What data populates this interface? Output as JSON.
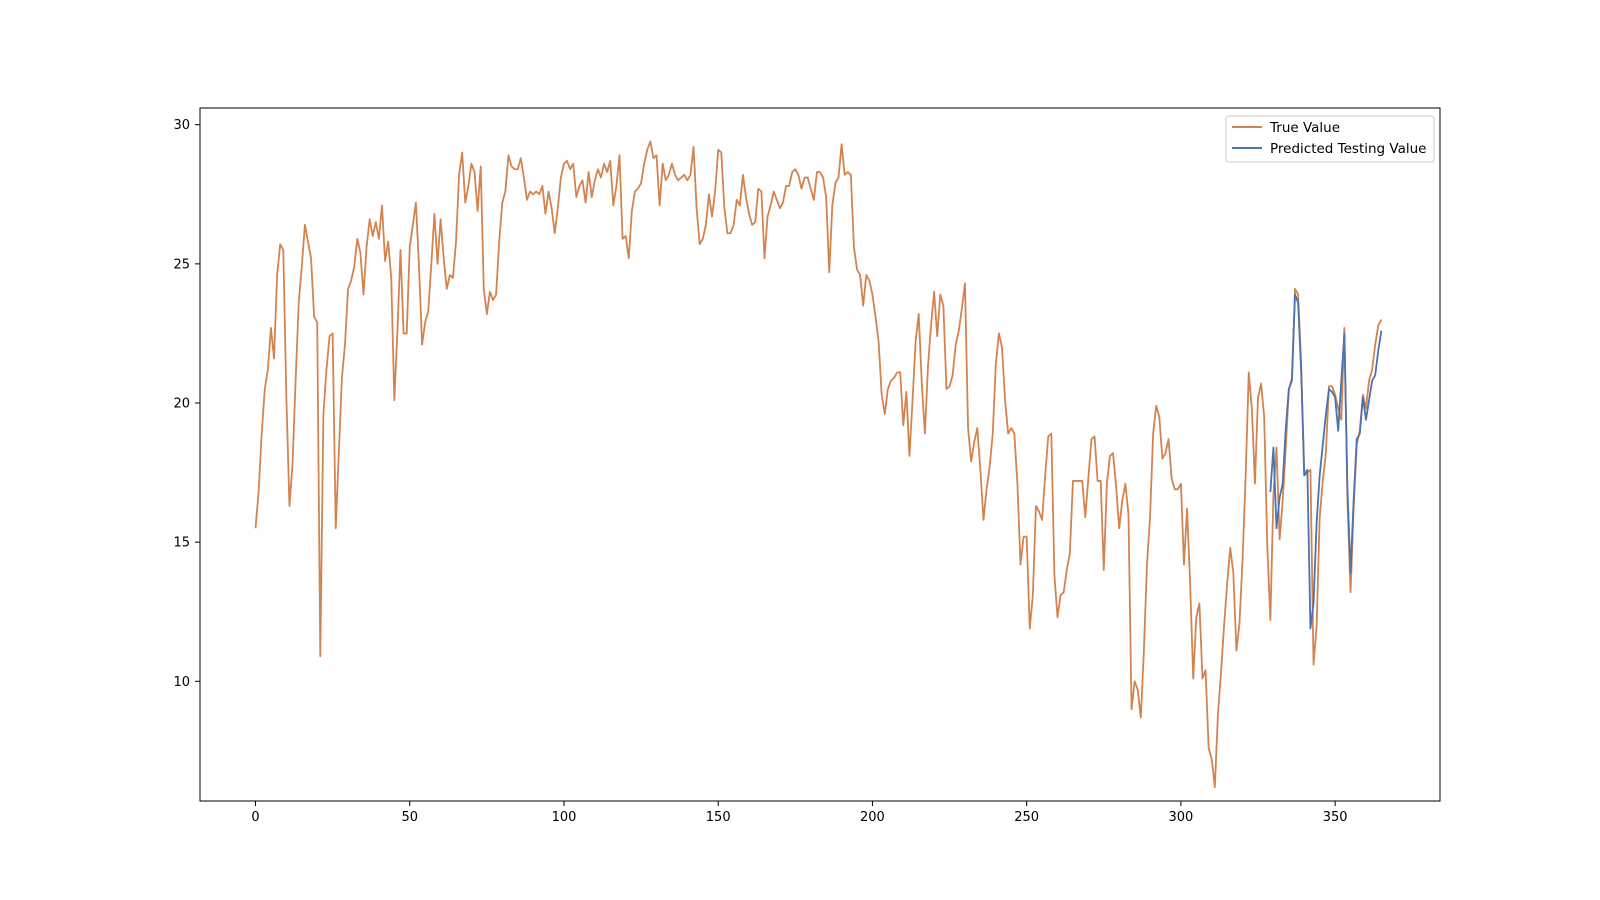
{
  "chart_data": {
    "type": "line",
    "title": "",
    "xlabel": "",
    "ylabel": "",
    "xlim": [
      -18,
      384
    ],
    "ylim": [
      5.7,
      30.6
    ],
    "xticks": [
      0,
      50,
      100,
      150,
      200,
      250,
      300,
      350
    ],
    "yticks": [
      10,
      15,
      20,
      25,
      30
    ],
    "grid": false,
    "legend_position": "top-right",
    "series": [
      {
        "name": "True Value",
        "color": "#d4834f",
        "x_start": 0,
        "values": [
          15.5,
          16.8,
          18.9,
          20.5,
          21.2,
          22.7,
          21.6,
          24.6,
          25.7,
          25.5,
          20.2,
          16.3,
          17.8,
          20.8,
          23.6,
          24.9,
          26.4,
          25.8,
          25.2,
          23.1,
          22.9,
          10.9,
          19.6,
          21.2,
          22.4,
          22.5,
          15.5,
          18.2,
          20.9,
          22.1,
          24.1,
          24.4,
          24.9,
          25.9,
          25.4,
          23.9,
          25.6,
          26.6,
          26.0,
          26.5,
          25.9,
          27.1,
          25.1,
          25.8,
          24.5,
          20.1,
          22.6,
          25.5,
          22.5,
          22.5,
          25.6,
          26.4,
          27.2,
          24.9,
          22.1,
          22.9,
          23.3,
          25.0,
          26.8,
          25.0,
          26.6,
          25.2,
          24.1,
          24.6,
          24.5,
          25.8,
          28.2,
          29.0,
          27.2,
          27.8,
          28.6,
          28.3,
          26.9,
          28.5,
          24.1,
          23.2,
          24.0,
          23.7,
          23.9,
          25.8,
          27.2,
          27.6,
          28.9,
          28.5,
          28.4,
          28.4,
          28.8,
          28.1,
          27.3,
          27.6,
          27.5,
          27.6,
          27.5,
          27.8,
          26.8,
          27.6,
          27.0,
          26.1,
          27.0,
          28.1,
          28.6,
          28.7,
          28.4,
          28.6,
          27.4,
          27.8,
          28.0,
          27.2,
          28.3,
          27.4,
          28.0,
          28.4,
          28.1,
          28.6,
          28.3,
          28.7,
          27.1,
          27.8,
          28.9,
          25.9,
          26.0,
          25.2,
          26.9,
          27.6,
          27.7,
          27.9,
          28.6,
          29.1,
          29.4,
          28.8,
          28.9,
          27.1,
          28.6,
          28.0,
          28.2,
          28.6,
          28.2,
          28.0,
          28.1,
          28.2,
          28.0,
          28.2,
          29.2,
          27.0,
          25.7,
          25.9,
          26.4,
          27.5,
          26.7,
          27.6,
          29.1,
          29.0,
          27.0,
          26.1,
          26.1,
          26.4,
          27.3,
          27.1,
          28.2,
          27.4,
          26.8,
          26.4,
          26.5,
          27.7,
          27.6,
          25.2,
          26.7,
          27.1,
          27.6,
          27.3,
          27.0,
          27.2,
          27.8,
          27.8,
          28.3,
          28.4,
          28.2,
          27.7,
          28.1,
          28.1,
          27.7,
          27.3,
          28.3,
          28.3,
          28.1,
          27.4,
          24.7,
          27.1,
          27.9,
          28.1,
          29.3,
          28.2,
          28.3,
          28.2,
          25.6,
          24.8,
          24.6,
          23.5,
          24.6,
          24.4,
          23.9,
          23.1,
          22.2,
          20.3,
          19.6,
          20.5,
          20.8,
          20.9,
          21.1,
          21.1,
          19.2,
          20.4,
          18.1,
          20.1,
          22.2,
          23.2,
          20.7,
          18.9,
          21.3,
          22.8,
          24.0,
          22.4,
          23.9,
          23.5,
          20.5,
          20.6,
          21.0,
          22.1,
          22.6,
          23.4,
          24.3,
          19.1,
          17.9,
          18.6,
          19.1,
          17.6,
          15.8,
          16.9,
          17.7,
          18.9,
          21.4,
          22.5,
          22.0,
          20.1,
          18.9,
          19.1,
          18.9,
          17.1,
          14.2,
          15.2,
          15.2,
          11.9,
          13.1,
          16.3,
          16.1,
          15.8,
          17.4,
          18.8,
          18.9,
          13.8,
          12.3,
          13.1,
          13.2,
          14.0,
          14.6,
          17.2,
          17.2,
          17.2,
          17.2,
          15.9,
          17.3,
          18.7,
          18.8,
          17.2,
          17.2,
          14.0,
          17.1,
          18.1,
          18.2,
          17.0,
          15.5,
          16.5,
          17.1,
          16.0,
          9.0,
          10.0,
          9.7,
          8.7,
          11.1,
          14.2,
          15.9,
          18.9,
          19.9,
          19.5,
          18.0,
          18.2,
          18.7,
          17.3,
          16.9,
          16.9,
          17.1,
          14.2,
          16.2,
          13.5,
          10.1,
          12.3,
          12.8,
          10.1,
          10.4,
          7.6,
          7.2,
          6.2,
          8.8,
          10.3,
          12.0,
          13.5,
          14.8,
          13.9,
          11.1,
          12.1,
          14.4,
          17.4,
          21.1,
          19.8,
          17.1,
          20.2,
          20.7,
          19.5,
          14.9,
          12.2,
          16.7,
          18.4,
          15.1,
          16.5,
          18.4,
          20.5,
          20.9,
          24.1,
          23.9,
          21.4,
          17.4,
          17.5,
          17.6,
          10.6,
          12.0,
          15.9,
          17.2,
          18.2,
          20.6,
          20.6,
          20.3,
          19.8,
          19.4,
          22.7,
          16.5,
          13.2,
          16.2,
          18.5,
          19.0,
          20.3,
          19.8,
          20.8,
          21.2,
          22.1,
          22.8,
          23.0
        ]
      },
      {
        "name": "Predicted Testing Value",
        "color": "#4c72b0",
        "x_start": 329,
        "values": [
          16.8,
          18.4,
          15.5,
          16.6,
          17.1,
          19.1,
          20.5,
          20.8,
          23.9,
          23.6,
          21.1,
          17.4,
          17.6,
          11.9,
          12.8,
          15.7,
          17.4,
          18.5,
          19.6,
          20.5,
          20.4,
          20.2,
          19.0,
          20.8,
          22.5,
          16.9,
          13.9,
          16.5,
          18.7,
          18.9,
          20.2,
          19.4,
          20.1,
          20.8,
          21.0,
          21.9,
          22.6
        ]
      }
    ]
  }
}
